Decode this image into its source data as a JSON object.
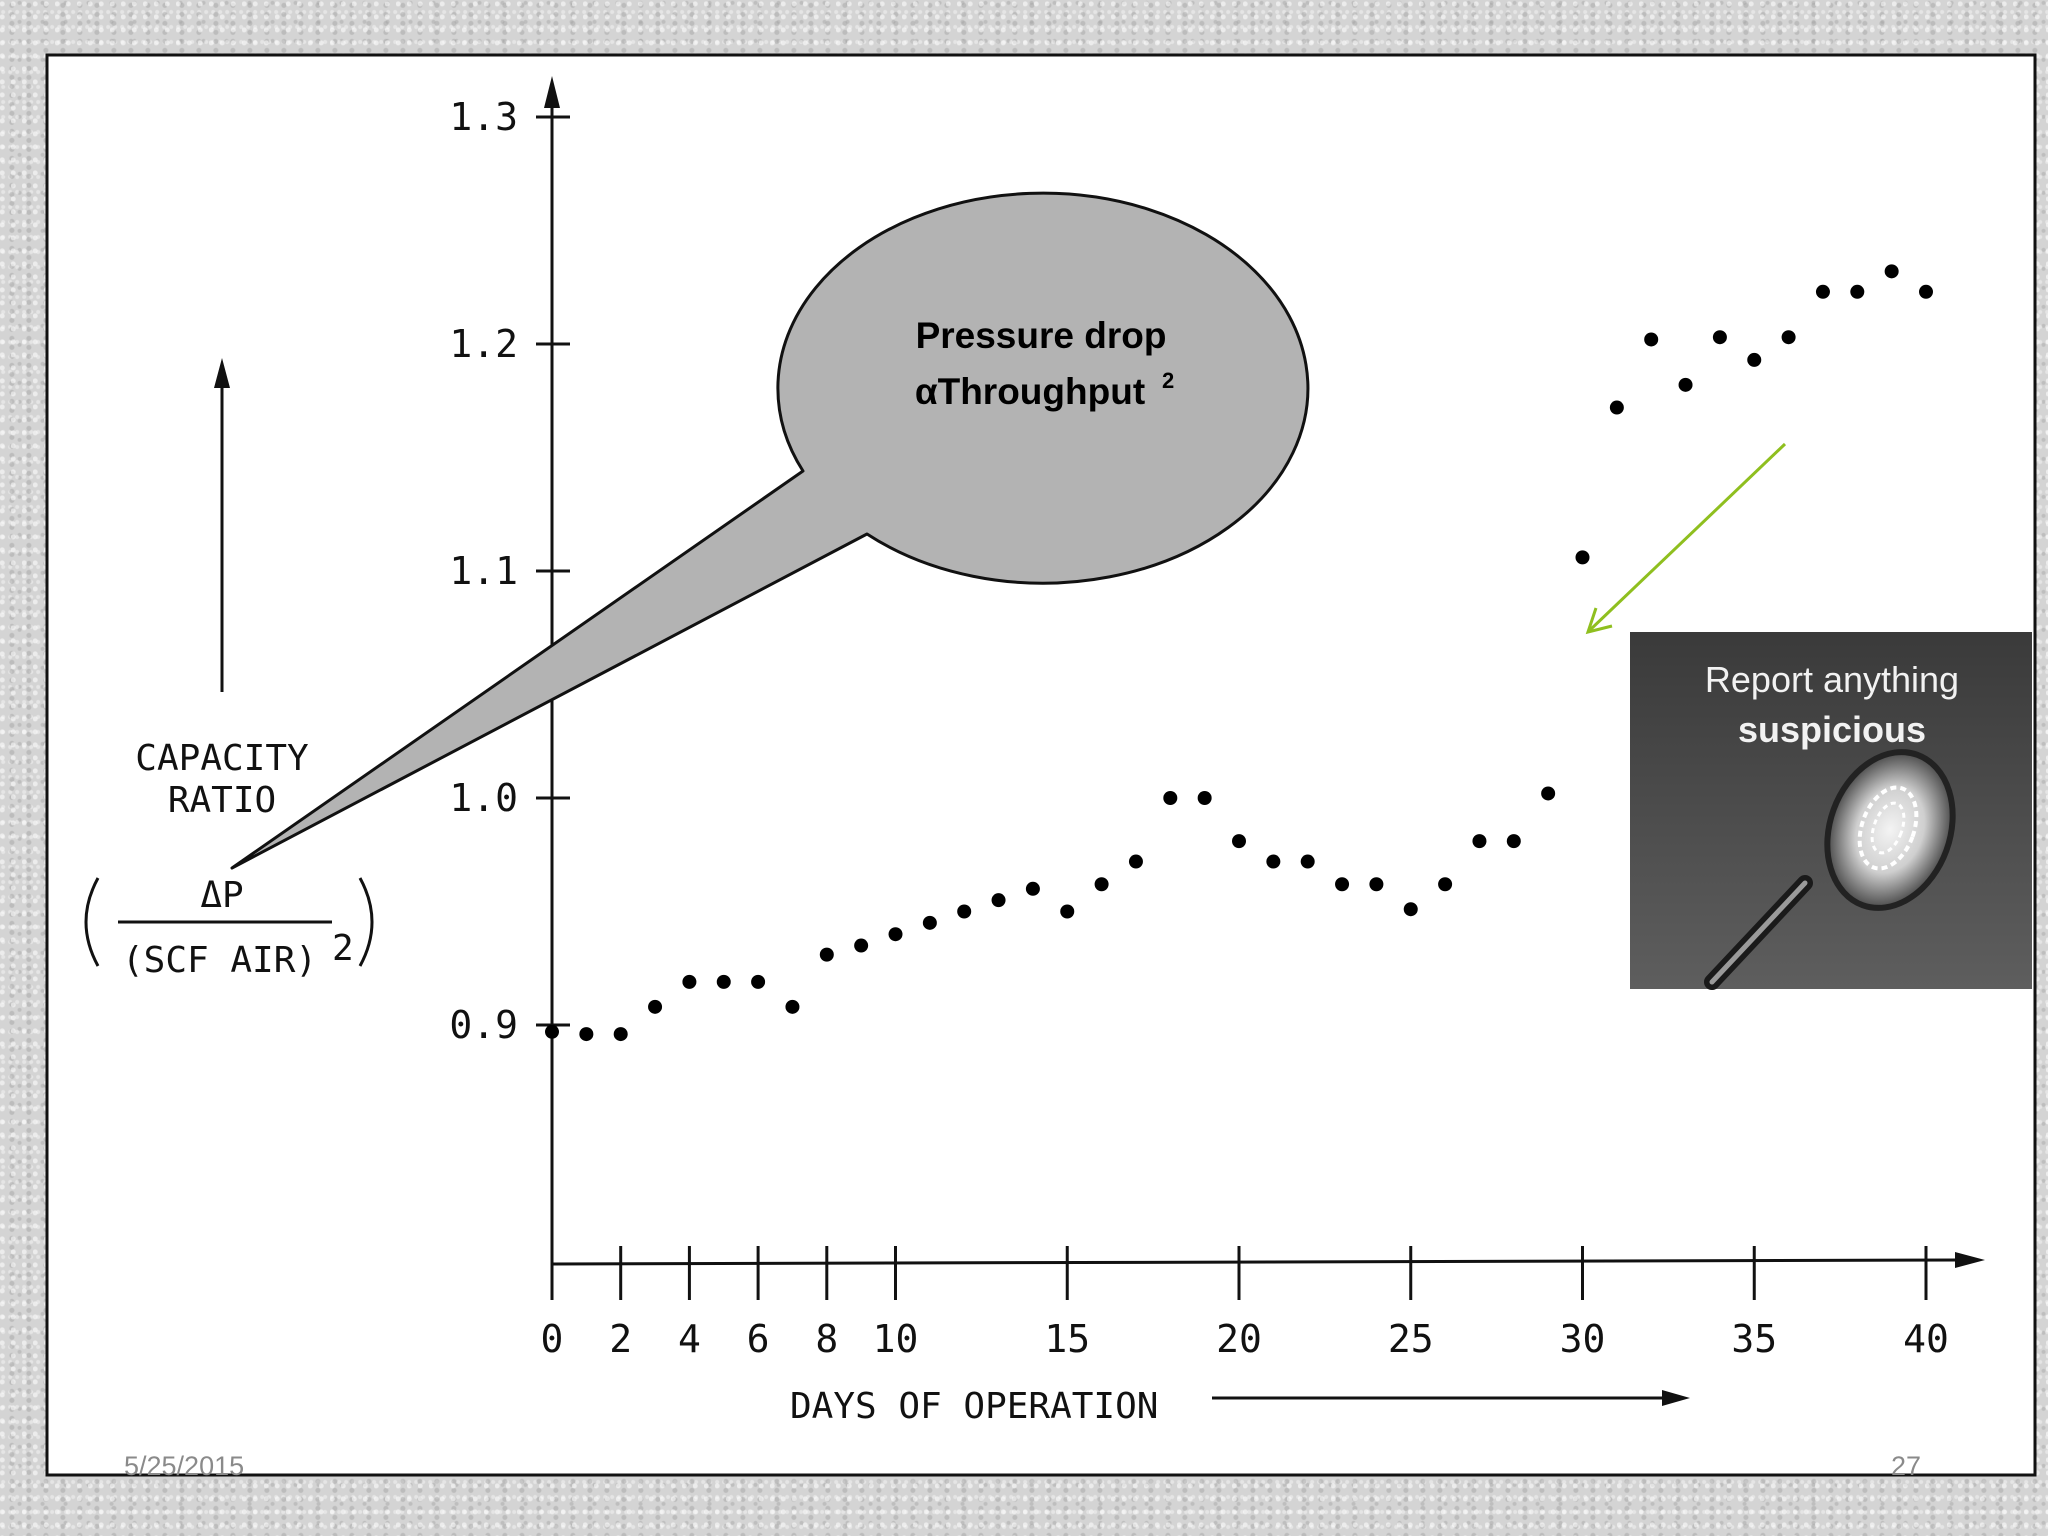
{
  "chart_data": {
    "type": "scatter",
    "xlabel": "DAYS OF OPERATION",
    "ylabel_lines": [
      "CAPACITY",
      "RATIO"
    ],
    "ylabel_formula": {
      "numerator": "ΔP",
      "denominator": "(SCF AIR)",
      "exponent": "2"
    },
    "xlim": [
      0,
      40
    ],
    "ylim": [
      0.8,
      1.3
    ],
    "x_ticks": [
      0,
      2,
      4,
      6,
      8,
      10,
      15,
      20,
      25,
      30,
      35,
      40
    ],
    "x_tick_labels": [
      "0",
      "2",
      "4",
      "6",
      "8",
      "10",
      "15",
      "20",
      "25",
      "30",
      "35",
      "40"
    ],
    "y_ticks": [
      0.9,
      1.0,
      1.1,
      1.2,
      1.3
    ],
    "y_tick_labels": [
      "0.9",
      "1.0",
      "1.1",
      "1.2",
      "1.3"
    ],
    "grid": false,
    "series": [
      {
        "x": [
          0,
          1,
          2,
          3,
          4,
          5,
          6,
          7,
          8,
          9,
          10,
          11,
          12,
          13,
          14,
          15,
          16,
          17,
          18,
          19,
          20,
          21,
          22,
          23,
          24,
          25,
          26,
          27,
          28,
          29,
          30,
          31,
          32,
          33,
          34,
          35,
          36,
          37,
          38,
          39,
          40
        ],
        "y": [
          0.897,
          0.896,
          0.896,
          0.908,
          0.919,
          0.919,
          0.919,
          0.908,
          0.931,
          0.935,
          0.94,
          0.945,
          0.95,
          0.955,
          0.96,
          0.95,
          0.962,
          0.972,
          1.0,
          1.0,
          0.981,
          0.972,
          0.972,
          0.962,
          0.962,
          0.951,
          0.962,
          0.981,
          0.981,
          1.002,
          1.106,
          1.172,
          1.202,
          1.182,
          1.203,
          1.193,
          1.203,
          1.223,
          1.223,
          1.232,
          1.223
        ]
      }
    ]
  },
  "callout": {
    "line1": "Pressure drop",
    "line2": "αThroughput",
    "superscript": "2"
  },
  "report_card": {
    "line1": "Report anything",
    "line2": "suspicious"
  },
  "footer": {
    "date": "5/25/2015",
    "page": "27"
  },
  "colors": {
    "callout_fill": "#b3b3b3",
    "arrow_green": "#8fbf1f",
    "card_dark": "#3b3b3b"
  }
}
